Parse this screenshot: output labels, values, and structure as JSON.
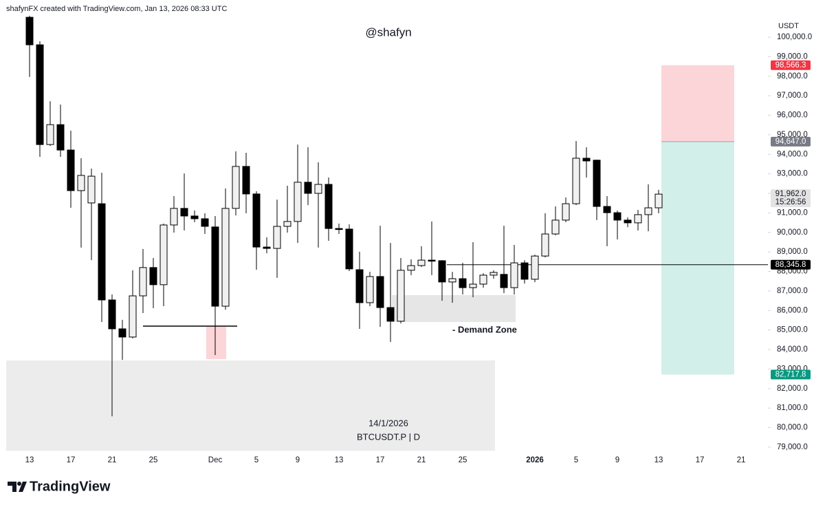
{
  "chart_data": {
    "type": "candlestick",
    "header": "shafynFX created with TradingView.com, Jan 13, 2026 08:33 UTC",
    "watermark": "@shafyn",
    "currency": "USDT",
    "symbol_date": "14/1/2026",
    "symbol": "BTCUSDT.P | D",
    "brand": "TradingView",
    "annotation": "- Demand Zone",
    "up_color": "#f0f0f0",
    "down_color": "#000000",
    "categories": [
      "13",
      null,
      null,
      null,
      "17",
      null,
      null,
      null,
      "21",
      null,
      null,
      null,
      "25",
      null,
      null,
      null,
      null,
      null,
      "Dec",
      null,
      null,
      null,
      "5",
      null,
      null,
      null,
      "9",
      null,
      null,
      null,
      "13",
      null,
      null,
      null,
      "17",
      null,
      null,
      null,
      "21",
      null,
      null,
      null,
      "25",
      null,
      null,
      null,
      null,
      null,
      null,
      "2026",
      null,
      null,
      null,
      "5",
      null,
      null,
      null,
      "9",
      null,
      null,
      null,
      "13",
      null,
      null,
      null,
      "17",
      null,
      null,
      null,
      "21"
    ],
    "open": [
      101020,
      99610,
      94500,
      95520,
      94220,
      92140,
      91510,
      91470,
      86540,
      85060,
      84640,
      86750,
      88200,
      87320,
      90380,
      91230,
      90840,
      90700,
      90280,
      86220,
      91230,
      93380,
      91970,
      89250,
      89180,
      90310,
      90560,
      92570,
      92000,
      92460,
      90200,
      90170,
      88090,
      86400,
      87740,
      86150,
      85450,
      88060,
      88300,
      88580,
      88550,
      87460,
      87630,
      87170,
      87350,
      87810,
      87850,
      87170,
      88440,
      87600,
      88790,
      89920,
      90630,
      91470,
      93800,
      93700,
      91330,
      91010,
      90630,
      90490,
      90910,
      91260,
      null,
      null,
      null,
      null,
      null,
      null,
      null,
      null
    ],
    "high": [
      101100,
      99790,
      96720,
      96550,
      95210,
      93800,
      93270,
      93060,
      86820,
      85520,
      88060,
      89150,
      88690,
      90450,
      91860,
      93020,
      91120,
      90980,
      90840,
      92250,
      94150,
      94080,
      92110,
      89750,
      91680,
      92390,
      94500,
      94360,
      93590,
      92810,
      90450,
      90410,
      89010,
      87980,
      90340,
      89460,
      88690,
      88620,
      89290,
      90560,
      88580,
      87980,
      88440,
      89500,
      87910,
      88060,
      90340,
      89360,
      88580,
      88860,
      90980,
      91330,
      91790,
      94680,
      94360,
      93730,
      91860,
      91120,
      90770,
      91150,
      92460,
      92180,
      null,
      null,
      null,
      null,
      null,
      null,
      null,
      null
    ],
    "low": [
      97960,
      93870,
      94430,
      93870,
      91260,
      89220,
      88580,
      85410,
      80580,
      83470,
      84570,
      85870,
      86120,
      86220,
      89990,
      90100,
      90520,
      89920,
      83720,
      86040,
      90870,
      90980,
      88090,
      88930,
      87670,
      89990,
      89460,
      91400,
      89220,
      89570,
      89920,
      88020,
      85060,
      86220,
      85160,
      84390,
      85340,
      87810,
      88230,
      87810,
      86500,
      86400,
      86820,
      86680,
      87170,
      87630,
      86890,
      86820,
      87380,
      87450,
      88720,
      89850,
      90520,
      91400,
      92810,
      90630,
      89290,
      89640,
      90270,
      90100,
      90060,
      90980,
      null,
      null,
      null,
      null,
      null,
      null,
      null,
      null
    ],
    "close": [
      99610,
      94500,
      95520,
      94220,
      92140,
      92920,
      92880,
      86540,
      85060,
      84640,
      86750,
      88200,
      87320,
      90380,
      91230,
      90840,
      90700,
      90310,
      86220,
      91230,
      93380,
      91970,
      89250,
      89180,
      90310,
      90560,
      92570,
      92000,
      92460,
      90200,
      90170,
      88130,
      86400,
      87740,
      86150,
      85450,
      88060,
      88300,
      88580,
      88550,
      87460,
      87630,
      87170,
      87350,
      87810,
      87950,
      87170,
      88440,
      87600,
      88790,
      89920,
      90630,
      91470,
      93800,
      93660,
      91330,
      91010,
      90630,
      90490,
      90910,
      91260,
      91962,
      null,
      null,
      null,
      null,
      null,
      null,
      null,
      null
    ],
    "ylim": [
      78750,
      101200
    ],
    "yticks": [
      {
        "value": 79000,
        "label": "79,000.0"
      },
      {
        "value": 80000,
        "label": "80,000.0"
      },
      {
        "value": 81000,
        "label": "81,000.0"
      },
      {
        "value": 82000,
        "label": "82,000.0"
      },
      {
        "value": 83000,
        "label": "83,000.0"
      },
      {
        "value": 84000,
        "label": "84,000.0"
      },
      {
        "value": 85000,
        "label": "85,000.0"
      },
      {
        "value": 86000,
        "label": "86,000.0"
      },
      {
        "value": 87000,
        "label": "87,000.0"
      },
      {
        "value": 88000,
        "label": "88,000.0"
      },
      {
        "value": 89000,
        "label": "89,000.0"
      },
      {
        "value": 90000,
        "label": "90,000.0"
      },
      {
        "value": 91000,
        "label": "91,000.0"
      },
      {
        "value": 92000,
        "label": "92,000.0"
      },
      {
        "value": 93000,
        "label": "93,000.0"
      },
      {
        "value": 94000,
        "label": "94,000.0"
      },
      {
        "value": 95000,
        "label": "95,000.0"
      },
      {
        "value": 96000,
        "label": "96,000.0"
      },
      {
        "value": 97000,
        "label": "97,000.0"
      },
      {
        "value": 98000,
        "label": "98,000.0"
      },
      {
        "value": 99000,
        "label": "99,000.0"
      },
      {
        "value": 100000,
        "label": "100,000.0"
      }
    ],
    "zones": [
      {
        "low": 78810,
        "high": 83440,
        "color": "#ececec"
      },
      {
        "low": 85410,
        "high": 86790,
        "color": "#e6e6e6"
      },
      {
        "low": 83510,
        "high": 85170,
        "color": "#fbd5d8"
      }
    ],
    "support_line": 85200,
    "levels": {
      "target": {
        "value": 98566.3,
        "label": "98,566.3",
        "color": "#f23645",
        "text_color": "#ffffff"
      },
      "entry": {
        "value": 94647.0,
        "label": "94,647.0",
        "color": "#787b86",
        "text_color": "#ffffff"
      },
      "last": {
        "value": 91962.0,
        "label": "91,962.0",
        "sub": "15:26:56",
        "color": "#e3e3e3",
        "text_color": "#131722"
      },
      "line": {
        "value": 88345.8,
        "label": "88,345.8",
        "color": "#000000",
        "text_color": "#ffffff"
      },
      "stop": {
        "value": 82717.8,
        "label": "82,717.8",
        "color": "#089981",
        "text_color": "#ffffff"
      }
    },
    "profit_color": "#d2efe9",
    "loss_color": "#fcd5d9"
  }
}
